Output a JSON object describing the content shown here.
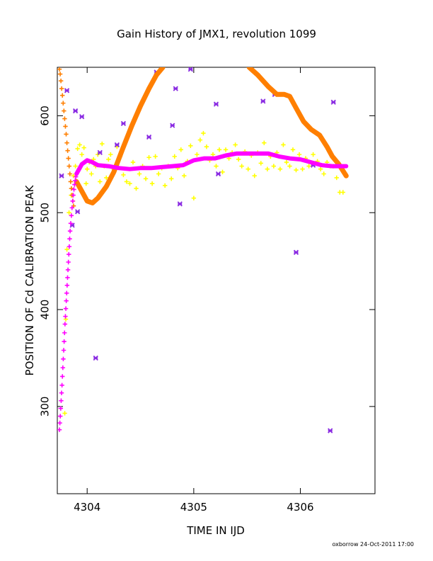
{
  "chart_data": {
    "type": "scatter",
    "title": "Gain History of JMX1, revolution 1099",
    "xlabel": "TIME IN IJD",
    "ylabel": "POSITION OF Cd CALIBRATION PEAK",
    "xlim": [
      4303.72,
      4306.7
    ],
    "ylim": [
      210,
      650
    ],
    "x_ticks": [
      4304,
      4305,
      4306
    ],
    "x_tick_labels": [
      "4304",
      "4305",
      "4306"
    ],
    "y_ticks": [
      300,
      400,
      500,
      600
    ],
    "y_tick_labels": [
      "300",
      "400",
      "500",
      "600"
    ],
    "grid": false,
    "legend": "none",
    "footer": "oxborrow 24-Oct-2011 17:00",
    "series": [
      {
        "marker": "plus",
        "color": "#ffff00",
        "points": [
          [
            4303.79,
            293
          ],
          [
            4303.8,
            390
          ],
          [
            4303.81,
            462
          ],
          [
            4303.83,
            500
          ],
          [
            4303.85,
            518
          ],
          [
            4303.87,
            538
          ],
          [
            4303.89,
            548
          ],
          [
            4303.91,
            566
          ],
          [
            4303.93,
            570
          ],
          [
            4303.95,
            560
          ],
          [
            4303.97,
            567
          ],
          [
            4303.99,
            530
          ],
          [
            4304.0,
            545
          ],
          [
            4304.02,
            552
          ],
          [
            4304.04,
            540
          ],
          [
            4304.06,
            555
          ],
          [
            4304.08,
            548
          ],
          [
            4304.1,
            560
          ],
          [
            4304.12,
            532
          ],
          [
            4304.14,
            571
          ],
          [
            4304.16,
            548
          ],
          [
            4304.18,
            536
          ],
          [
            4304.2,
            555
          ],
          [
            4304.22,
            560
          ],
          [
            4304.25,
            545
          ],
          [
            4304.28,
            568
          ],
          [
            4304.31,
            558
          ],
          [
            4304.34,
            539
          ],
          [
            4304.37,
            532
          ],
          [
            4304.4,
            530
          ],
          [
            4304.43,
            552
          ],
          [
            4304.46,
            525
          ],
          [
            4304.49,
            540
          ],
          [
            4304.52,
            548
          ],
          [
            4304.55,
            535
          ],
          [
            4304.58,
            557
          ],
          [
            4304.61,
            530
          ],
          [
            4304.64,
            558
          ],
          [
            4304.67,
            540
          ],
          [
            4304.7,
            546
          ],
          [
            4304.73,
            528
          ],
          [
            4304.76,
            548
          ],
          [
            4304.79,
            535
          ],
          [
            4304.82,
            558
          ],
          [
            4304.85,
            546
          ],
          [
            4304.88,
            565
          ],
          [
            4304.91,
            538
          ],
          [
            4304.94,
            553
          ],
          [
            4304.97,
            569
          ],
          [
            4305.0,
            515
          ],
          [
            4305.03,
            560
          ],
          [
            4305.06,
            575
          ],
          [
            4305.09,
            582
          ],
          [
            4305.12,
            568
          ],
          [
            4305.15,
            554
          ],
          [
            4305.18,
            560
          ],
          [
            4305.21,
            548
          ],
          [
            4305.24,
            565
          ],
          [
            4305.27,
            542
          ],
          [
            4305.3,
            565
          ],
          [
            4305.33,
            556
          ],
          [
            4305.36,
            562
          ],
          [
            4305.39,
            570
          ],
          [
            4305.42,
            555
          ],
          [
            4305.45,
            548
          ],
          [
            4305.48,
            563
          ],
          [
            4305.51,
            545
          ],
          [
            4305.54,
            559
          ],
          [
            4305.57,
            538
          ],
          [
            4305.6,
            562
          ],
          [
            4305.63,
            551
          ],
          [
            4305.66,
            572
          ],
          [
            4305.69,
            545
          ],
          [
            4305.72,
            558
          ],
          [
            4305.75,
            548
          ],
          [
            4305.78,
            562
          ],
          [
            4305.81,
            545
          ],
          [
            4305.84,
            570
          ],
          [
            4305.87,
            552
          ],
          [
            4305.9,
            548
          ],
          [
            4305.93,
            565
          ],
          [
            4305.96,
            544
          ],
          [
            4305.99,
            560
          ],
          [
            4306.02,
            545
          ],
          [
            4306.05,
            556
          ],
          [
            4306.08,
            548
          ],
          [
            4306.12,
            560
          ],
          [
            4306.16,
            553
          ],
          [
            4306.19,
            545
          ],
          [
            4306.22,
            540
          ],
          [
            4306.25,
            552
          ],
          [
            4306.28,
            548
          ],
          [
            4306.31,
            548
          ],
          [
            4306.34,
            536
          ],
          [
            4306.37,
            521
          ],
          [
            4306.4,
            521
          ]
        ]
      },
      {
        "marker": "cross",
        "color": "#8a2be2",
        "points": [
          [
            4303.76,
            538
          ],
          [
            4303.81,
            626
          ],
          [
            4303.86,
            487
          ],
          [
            4303.89,
            605
          ],
          [
            4303.91,
            501
          ],
          [
            4303.95,
            599
          ],
          [
            4304.08,
            350
          ],
          [
            4304.12,
            562
          ],
          [
            4304.28,
            570
          ],
          [
            4304.34,
            592
          ],
          [
            4304.58,
            578
          ],
          [
            4304.65,
            645
          ],
          [
            4304.8,
            590
          ],
          [
            4304.83,
            628
          ],
          [
            4304.87,
            509
          ],
          [
            4304.97,
            648
          ],
          [
            4305.21,
            612
          ],
          [
            4305.23,
            540
          ],
          [
            4305.65,
            615
          ],
          [
            4305.76,
            622
          ],
          [
            4305.96,
            459
          ],
          [
            4306.12,
            549
          ],
          [
            4306.28,
            275
          ],
          [
            4306.31,
            614
          ]
        ]
      },
      {
        "marker": "line",
        "color": "#ff7f00",
        "segments": [
          [
            [
              4303.9,
              532
            ],
            [
              4303.95,
              522
            ],
            [
              4304.0,
              512
            ],
            [
              4304.05,
              510
            ],
            [
              4304.1,
              515
            ],
            [
              4304.18,
              527
            ],
            [
              4304.25,
              542
            ],
            [
              4304.33,
              565
            ],
            [
              4304.42,
              590
            ],
            [
              4304.5,
              610
            ],
            [
              4304.58,
              628
            ],
            [
              4304.65,
              642
            ],
            [
              4304.71,
              650
            ]
          ],
          [
            [
              4305.52,
              650
            ],
            [
              4305.6,
              642
            ],
            [
              4305.7,
              630
            ],
            [
              4305.78,
              622
            ],
            [
              4305.85,
              622
            ],
            [
              4305.9,
              620
            ],
            [
              4305.96,
              608
            ],
            [
              4306.03,
              594
            ],
            [
              4306.1,
              586
            ],
            [
              4306.18,
              580
            ],
            [
              4306.25,
              568
            ],
            [
              4306.3,
              558
            ],
            [
              4306.36,
              550
            ],
            [
              4306.43,
              538
            ]
          ]
        ]
      },
      {
        "marker": "plus",
        "color": "#ff7f00",
        "points": [
          [
            4303.74,
            648
          ],
          [
            4303.747,
            643
          ],
          [
            4303.754,
            636
          ],
          [
            4303.761,
            628
          ],
          [
            4303.768,
            621
          ],
          [
            4303.775,
            613
          ],
          [
            4303.782,
            605
          ],
          [
            4303.789,
            597
          ],
          [
            4303.796,
            589
          ],
          [
            4303.803,
            581
          ],
          [
            4303.81,
            572
          ],
          [
            4303.817,
            564
          ],
          [
            4303.824,
            556
          ],
          [
            4303.831,
            548
          ],
          [
            4303.838,
            540
          ],
          [
            4303.845,
            532
          ],
          [
            4303.852,
            525
          ],
          [
            4303.859,
            518
          ],
          [
            4303.866,
            512
          ],
          [
            4303.873,
            507
          ]
        ]
      },
      {
        "marker": "plus",
        "color": "#ff00ff",
        "points": [
          [
            4303.74,
            276
          ],
          [
            4303.744,
            283
          ],
          [
            4303.748,
            290
          ],
          [
            4303.752,
            298
          ],
          [
            4303.756,
            306
          ],
          [
            4303.76,
            314
          ],
          [
            4303.764,
            322
          ],
          [
            4303.768,
            331
          ],
          [
            4303.772,
            340
          ],
          [
            4303.776,
            349
          ],
          [
            4303.78,
            358
          ],
          [
            4303.784,
            367
          ],
          [
            4303.788,
            376
          ],
          [
            4303.792,
            385
          ],
          [
            4303.796,
            393
          ],
          [
            4303.8,
            401
          ],
          [
            4303.804,
            409
          ],
          [
            4303.808,
            417
          ],
          [
            4303.812,
            425
          ],
          [
            4303.816,
            433
          ],
          [
            4303.82,
            441
          ],
          [
            4303.824,
            449
          ],
          [
            4303.828,
            457
          ],
          [
            4303.832,
            465
          ],
          [
            4303.836,
            473
          ],
          [
            4303.84,
            481
          ],
          [
            4303.846,
            489
          ],
          [
            4303.852,
            497
          ],
          [
            4303.858,
            505
          ],
          [
            4303.864,
            512
          ],
          [
            4303.87,
            518
          ],
          [
            4303.876,
            524
          ],
          [
            4303.882,
            529
          ],
          [
            4303.888,
            533
          ],
          [
            4303.894,
            537
          ]
        ]
      },
      {
        "marker": "line",
        "color": "#ff00ff",
        "segments": [
          [
            [
              4303.9,
              540
            ],
            [
              4303.95,
              550
            ],
            [
              4304.0,
              554
            ],
            [
              4304.05,
              552
            ],
            [
              4304.1,
              549
            ],
            [
              4304.2,
              548
            ],
            [
              4304.3,
              546
            ],
            [
              4304.4,
              545
            ],
            [
              4304.5,
              546
            ],
            [
              4304.6,
              546
            ],
            [
              4304.7,
              547
            ],
            [
              4304.8,
              548
            ],
            [
              4304.9,
              549
            ],
            [
              4305.0,
              554
            ],
            [
              4305.1,
              556
            ],
            [
              4305.2,
              556
            ],
            [
              4305.3,
              559
            ],
            [
              4305.4,
              561
            ],
            [
              4305.5,
              561
            ],
            [
              4305.6,
              561
            ],
            [
              4305.7,
              561
            ],
            [
              4305.8,
              558
            ],
            [
              4305.9,
              556
            ],
            [
              4306.0,
              555
            ],
            [
              4306.1,
              552
            ],
            [
              4306.2,
              549
            ],
            [
              4306.3,
              548
            ],
            [
              4306.43,
              548
            ]
          ]
        ]
      }
    ]
  }
}
